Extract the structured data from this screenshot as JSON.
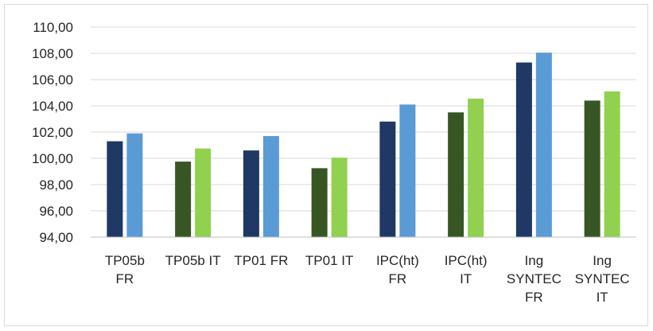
{
  "chart_data": {
    "type": "bar",
    "title": "",
    "xlabel": "",
    "ylabel": "",
    "ylim": [
      94,
      110
    ],
    "ytick_step": 2,
    "ytick_labels": [
      "94,00",
      "96,00",
      "98,00",
      "100,00",
      "102,00",
      "104,00",
      "106,00",
      "108,00",
      "110,00"
    ],
    "grid": true,
    "legend": "none",
    "categories": [
      [
        "TP05b",
        "FR"
      ],
      [
        "TP05b IT"
      ],
      [
        "TP01 FR"
      ],
      [
        "TP01 IT"
      ],
      [
        "IPC(ht)",
        "FR"
      ],
      [
        "IPC(ht)",
        "IT"
      ],
      [
        "Ing",
        "SYNTEC",
        "FR"
      ],
      [
        "Ing",
        "SYNTEC",
        "IT"
      ]
    ],
    "series": [
      {
        "values": [
          101.3,
          99.75,
          100.6,
          99.25,
          102.8,
          103.5,
          107.3,
          104.4
        ],
        "colors": [
          "#1f3864",
          "#375623",
          "#1f3864",
          "#375623",
          "#1f3864",
          "#375623",
          "#1f3864",
          "#375623"
        ]
      },
      {
        "values": [
          101.9,
          100.75,
          101.7,
          100.05,
          104.1,
          104.55,
          108.05,
          105.1
        ],
        "colors": [
          "#5b9bd5",
          "#92d050",
          "#5b9bd5",
          "#92d050",
          "#5b9bd5",
          "#92d050",
          "#5b9bd5",
          "#92d050"
        ]
      }
    ],
    "gridline_color": "#d9d9d9",
    "axis_color": "#bfbfbf",
    "text_color": "#262626"
  }
}
